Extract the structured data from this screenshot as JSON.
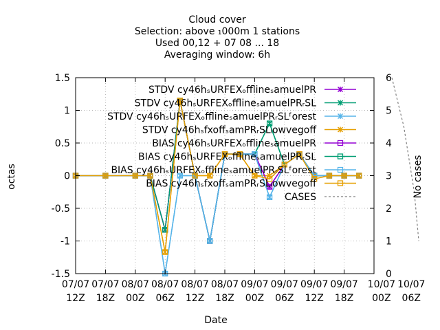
{
  "chart_data": {
    "type": "line",
    "title_lines": [
      "Cloud cover",
      "Selection: above ₁000m      1 stations",
      "Used  00,12  + 07 08 ... 18",
      "Averaging window:  6h"
    ],
    "xlabel": "Date",
    "ylabel": "octas",
    "y2label": "No cases",
    "ylim": [
      -1.5,
      1.5
    ],
    "y2lim": [
      0,
      6
    ],
    "yticks": [
      -1.5,
      -1,
      -0.5,
      0,
      0.5,
      1,
      1.5
    ],
    "ytick_labels": [
      "-1.5",
      "-1",
      "-0.5",
      "0",
      "0.5",
      "1",
      "1.5"
    ],
    "y2ticks": [
      0,
      1,
      2,
      3,
      4,
      5,
      6
    ],
    "y2tick_labels": [
      "0",
      "1",
      "2",
      "3",
      "4",
      "5",
      "6"
    ],
    "xlim": [
      0,
      19
    ],
    "xticks": [
      0,
      2,
      4,
      6,
      8,
      10,
      12,
      14,
      16,
      18
    ],
    "xtick_labels": [
      [
        "07/07",
        "12Z"
      ],
      [
        "07/07",
        "18Z"
      ],
      [
        "08/07",
        "00Z"
      ],
      [
        "08/07",
        "06Z"
      ],
      [
        "08/07",
        "12Z"
      ],
      [
        "08/07",
        "18Z"
      ],
      [
        "09/07",
        "00Z"
      ],
      [
        "09/07",
        "06Z"
      ],
      [
        "09/07",
        "12Z"
      ],
      [
        "09/07",
        "18Z"
      ]
    ],
    "extra_xtick_labels": [
      {
        "x": 20.5,
        "lines": [
          "10/07",
          "00Z"
        ]
      },
      {
        "x": 22.5,
        "lines": [
          "10/07",
          "06Z"
        ]
      }
    ],
    "grid": true,
    "legend_position": "top-right",
    "x": [
      0,
      2,
      4,
      5,
      6,
      7,
      8,
      9,
      10,
      11,
      12,
      13,
      14,
      15,
      16,
      17,
      18,
      19
    ],
    "series": [
      {
        "name": "STDV cy46h_SURFEX_offline_samuelPR",
        "color": "#9400d3",
        "marker": "x",
        "axis": "y",
        "values": [
          0,
          0,
          0,
          0,
          -0.83,
          1.15,
          0,
          -1.0,
          0.33,
          0.33,
          0.33,
          -0.17,
          0.17,
          0.33,
          0,
          0,
          0,
          0
        ]
      },
      {
        "name": "STDV cy46h_SURFEX_offline_samuelPR_RSL",
        "color": "#009e73",
        "marker": "x",
        "axis": "y",
        "values": [
          0,
          0,
          0,
          0,
          -0.83,
          1.15,
          0,
          -1.0,
          0.33,
          0.33,
          0.33,
          0.8,
          0.17,
          0.33,
          0,
          0,
          0,
          0
        ]
      },
      {
        "name": "STDV cy46h_SURFEX_offline_samuelPR_RSL_forest",
        "color": "#56b4e9",
        "marker": "x",
        "axis": "y",
        "values": [
          0,
          0,
          0,
          0,
          -1.5,
          0,
          0,
          -1.0,
          0.33,
          0.33,
          0.33,
          -0.33,
          0.17,
          0.33,
          0,
          0,
          0,
          0
        ]
      },
      {
        "name": "STDV cy46h_sfxoff_samPR_RSL_lowvegoff",
        "color": "#e69f00",
        "marker": "x",
        "axis": "y",
        "values": [
          0,
          0,
          0,
          0,
          -1.17,
          1.15,
          0,
          0,
          0.33,
          0.33,
          0,
          0,
          0.17,
          0.33,
          0,
          0,
          0,
          0
        ]
      },
      {
        "name": "BIAS cy46h_SURFEX_offline_samuelPR",
        "color": "#9400d3",
        "marker": "square",
        "axis": "y",
        "values": [
          0,
          0,
          0,
          0,
          -0.83,
          1.15,
          0,
          -1.0,
          0.33,
          0.33,
          0.33,
          -0.17,
          0.17,
          0.33,
          0,
          0,
          0,
          0
        ]
      },
      {
        "name": "BIAS cy46h_SURFEX_offline_samuelPR_RSL",
        "color": "#009e73",
        "marker": "square",
        "axis": "y",
        "values": [
          0,
          0,
          0,
          0,
          -0.83,
          1.15,
          0,
          -1.0,
          0.33,
          0.33,
          0.33,
          0.8,
          0.17,
          0.33,
          0,
          0,
          0,
          0
        ]
      },
      {
        "name": "BIAS cy46h_SURFEX_offline_samuelPR_RSL_forest",
        "color": "#56b4e9",
        "marker": "square",
        "axis": "y",
        "values": [
          0,
          0,
          0,
          0,
          -1.5,
          0,
          0,
          -1.0,
          0.33,
          0.33,
          0.33,
          -0.33,
          0.17,
          0.33,
          0,
          0,
          0,
          0
        ]
      },
      {
        "name": "BIAS cy46h_sfxoff_samPR_RSL_lowvegoff",
        "color": "#e69f00",
        "marker": "square",
        "axis": "y",
        "values": [
          0,
          0,
          0,
          0,
          -1.17,
          1.15,
          0,
          0,
          0.33,
          0.33,
          0,
          -0.05,
          0.17,
          0.33,
          -0.05,
          0,
          0,
          0
        ]
      },
      {
        "name": "CASES",
        "color": "#808080",
        "marker": "none",
        "dashed": true,
        "axis": "y2",
        "x_values": [
          21.2,
          22,
          22.7,
          23
        ],
        "values": [
          6,
          4.5,
          2.5,
          1
        ]
      }
    ],
    "legend_lines": [
      "STDV cy46hₛURFEXₒfflineₛamuelPR",
      "STDV cy46hₛURFEXₒfflineₛamuelPRᵣSL",
      "STDV cy46hₛURFEXₒfflineₛamuelPRᵣSLᶠorest",
      "STDV cy46hₛfxoffₛamPRᵣSLₗowvegoff",
      "BIAS cy46hₛURFEXₒfflineₛamuelPR",
      "BIAS cy46hₛURFEXₒfflineₛamuelPRᵣSL",
      "BIAS cy46hₛURFEXₒfflineₛamuelPRᵣSLᶠorest",
      "BIAS cy46hₛfxoffₛamPRᵣSLₗowvegoff",
      "CASES"
    ]
  }
}
